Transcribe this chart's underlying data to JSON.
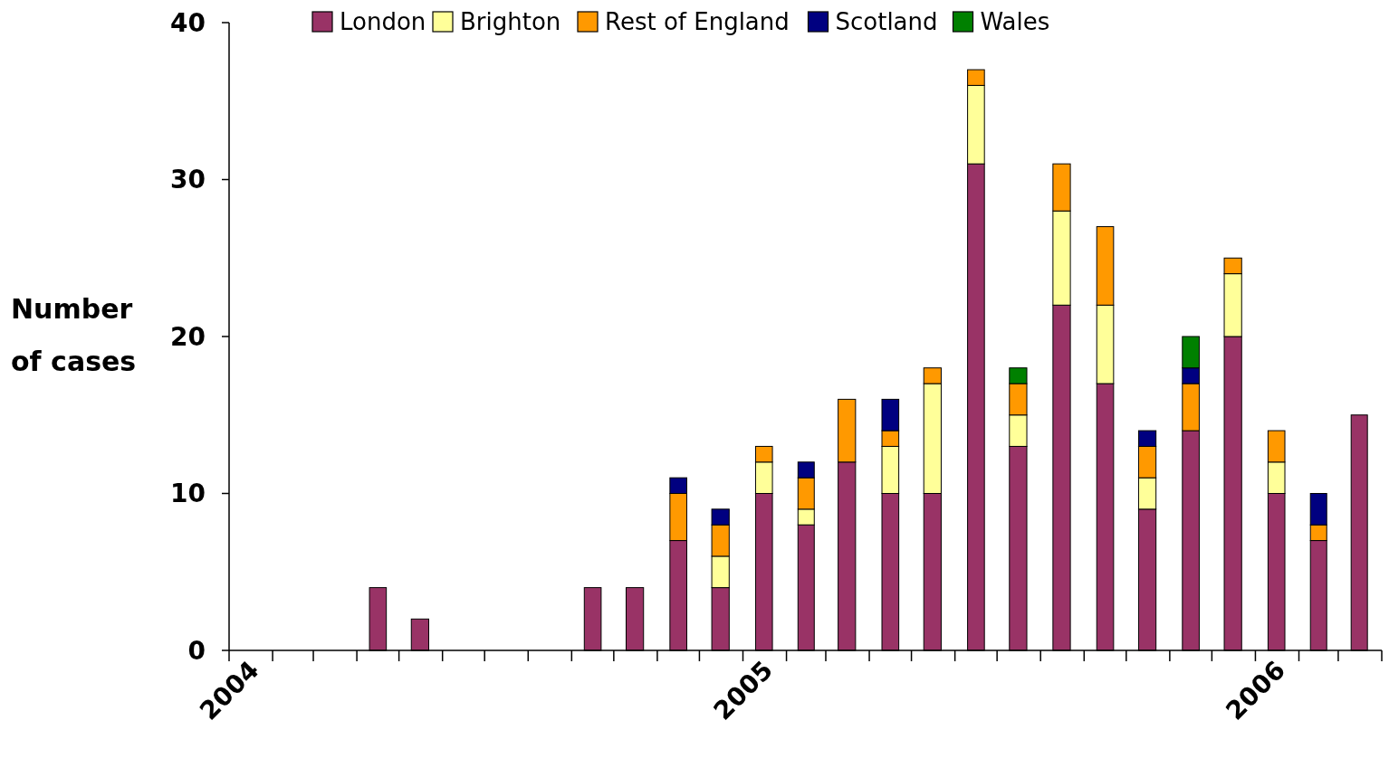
{
  "chart_data": {
    "type": "bar",
    "stacked": true,
    "ylabel": "Number of cases",
    "x": [
      "2004-01-16",
      "2004-02-15",
      "2004-03-16",
      "2004-04-16",
      "2004-05-16",
      "2004-06-16",
      "2004-07-16",
      "2004-08-16",
      "2004-09-16",
      "2004-10-16",
      "2004-11-16",
      "2004-12-16",
      "2005-01-16",
      "2005-02-15",
      "2005-03-16",
      "2005-04-16",
      "2005-05-16",
      "2005-06-16",
      "2005-07-16",
      "2005-08-16",
      "2005-09-16",
      "2005-10-16",
      "2005-11-16",
      "2005-12-16",
      "2006-01-16",
      "2006-02-15",
      "2006-03-16"
    ],
    "series": [
      {
        "name": "London",
        "color": "#993366",
        "values": [
          0,
          0,
          0,
          4,
          2,
          0,
          0,
          0,
          4,
          4,
          7,
          4,
          10,
          8,
          12,
          10,
          10,
          31,
          13,
          22,
          17,
          9,
          14,
          20,
          10,
          7,
          15
        ]
      },
      {
        "name": "Brighton",
        "color": "#ffff99",
        "values": [
          0,
          0,
          0,
          0,
          0,
          0,
          0,
          0,
          0,
          0,
          0,
          2,
          2,
          1,
          0,
          3,
          7,
          5,
          2,
          6,
          5,
          2,
          0,
          4,
          2,
          0,
          0
        ]
      },
      {
        "name": "Rest of England",
        "color": "#ff9900",
        "values": [
          0,
          0,
          0,
          0,
          0,
          0,
          0,
          0,
          0,
          0,
          3,
          2,
          1,
          2,
          4,
          1,
          1,
          1,
          2,
          3,
          5,
          2,
          3,
          1,
          2,
          1,
          0
        ]
      },
      {
        "name": "Scotland",
        "color": "#000080",
        "values": [
          0,
          0,
          0,
          0,
          0,
          0,
          0,
          0,
          0,
          0,
          1,
          1,
          0,
          1,
          0,
          2,
          0,
          0,
          0,
          0,
          0,
          1,
          1,
          0,
          0,
          2,
          0
        ]
      },
      {
        "name": "Wales",
        "color": "#008000",
        "values": [
          0,
          0,
          0,
          0,
          0,
          0,
          0,
          0,
          0,
          0,
          0,
          0,
          0,
          0,
          0,
          0,
          0,
          0,
          1,
          0,
          0,
          0,
          2,
          0,
          0,
          0,
          0
        ]
      }
    ],
    "ylim": [
      0,
      40
    ],
    "yticks": [
      0,
      10,
      20,
      30,
      40
    ],
    "xlim": [
      "2004-01-01",
      "2006-04-01"
    ],
    "xticks": [
      {
        "value": "2004-01-01",
        "label": "2004"
      },
      {
        "value": "2004-02-01",
        "label": null
      },
      {
        "value": "2004-03-01",
        "label": null
      },
      {
        "value": "2004-04-01",
        "label": null
      },
      {
        "value": "2004-05-01",
        "label": null
      },
      {
        "value": "2004-06-01",
        "label": null
      },
      {
        "value": "2004-07-01",
        "label": null
      },
      {
        "value": "2004-08-01",
        "label": null
      },
      {
        "value": "2004-09-01",
        "label": null
      },
      {
        "value": "2004-10-01",
        "label": null
      },
      {
        "value": "2004-11-01",
        "label": null
      },
      {
        "value": "2004-12-01",
        "label": null
      },
      {
        "value": "2005-01-01",
        "label": "2005"
      },
      {
        "value": "2005-02-01",
        "label": null
      },
      {
        "value": "2005-03-01",
        "label": null
      },
      {
        "value": "2005-04-01",
        "label": null
      },
      {
        "value": "2005-05-01",
        "label": null
      },
      {
        "value": "2005-06-01",
        "label": null
      },
      {
        "value": "2005-07-01",
        "label": null
      },
      {
        "value": "2005-08-01",
        "label": null
      },
      {
        "value": "2005-09-01",
        "label": null
      },
      {
        "value": "2005-10-01",
        "label": null
      },
      {
        "value": "2005-11-01",
        "label": null
      },
      {
        "value": "2005-12-01",
        "label": null
      },
      {
        "value": "2006-01-01",
        "label": "2006"
      },
      {
        "value": "2006-02-01",
        "label": null
      },
      {
        "value": "2006-03-01",
        "label": null
      },
      {
        "value": "2006-04-01",
        "label": null
      }
    ],
    "legend": "top",
    "grid": false
  }
}
